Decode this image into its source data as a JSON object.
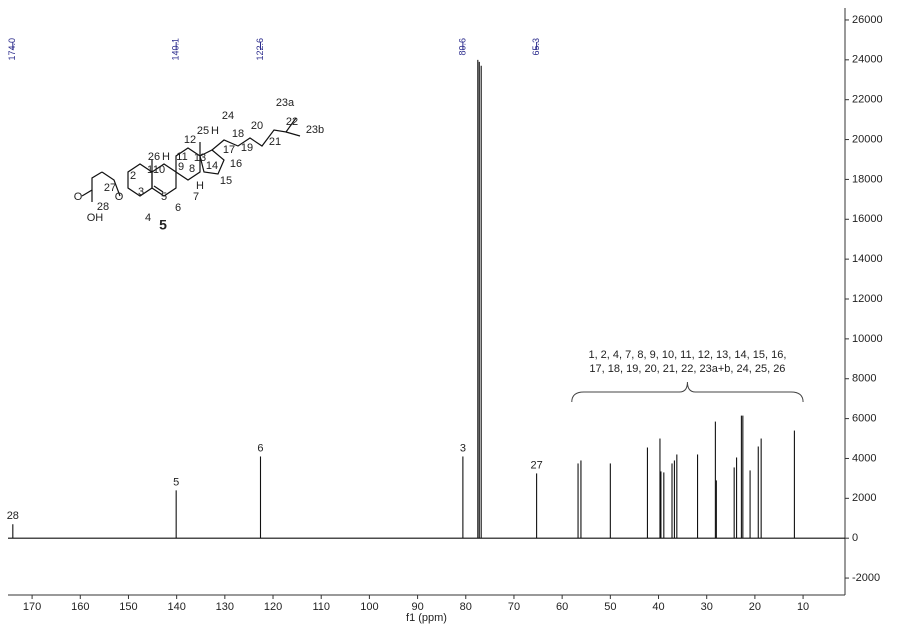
{
  "chart_data": {
    "type": "spectrum",
    "x_label": "f1 (ppm)",
    "xlim": [
      175,
      1.3
    ],
    "ylim": [
      -2850,
      26600
    ],
    "xticks": [
      170,
      160,
      150,
      140,
      130,
      120,
      110,
      100,
      90,
      80,
      70,
      60,
      50,
      40,
      30,
      20,
      10
    ],
    "yticks": [
      -2000,
      0,
      2000,
      4000,
      6000,
      8000,
      10000,
      12000,
      14000,
      16000,
      18000,
      20000,
      22000,
      24000,
      26000
    ],
    "color": "#111111",
    "x": [
      174.0,
      140.1,
      122.6,
      80.6,
      77.5,
      77.2,
      76.8,
      65.3,
      56.7,
      56.1,
      50.0,
      42.3,
      39.7,
      39.5,
      38.9,
      37.2,
      36.7,
      36.2,
      31.9,
      28.2,
      28.0,
      24.3,
      23.8,
      22.8,
      22.5,
      21.0,
      19.3,
      18.7,
      11.8
    ],
    "values": [
      700,
      2400,
      4100,
      4100,
      24000,
      23900,
      23700,
      3250,
      3750,
      3900,
      3750,
      4550,
      5000,
      3350,
      3300,
      3750,
      3900,
      4200,
      4200,
      5850,
      2900,
      3550,
      4050,
      6150,
      6150,
      3400,
      4600,
      5000,
      5400
    ],
    "assignments": [
      "28",
      "5",
      "6",
      "3",
      null,
      null,
      null,
      "27",
      null,
      null,
      null,
      null,
      null,
      null,
      null,
      null,
      null,
      null,
      null,
      null,
      null,
      null,
      null,
      null,
      null,
      null,
      null,
      null,
      null
    ],
    "peak_picks": [
      {
        "value": 174,
        "label": "174.0"
      },
      140.1,
      122.6,
      80.6,
      65.3
    ],
    "bracket_label": [
      "1, 2, 4, 7, 8, 9, 10, 11, 12, 13, 14, 15, 16,",
      "17, 18, 19, 20, 21, 22, 23a+b, 24, 25, 26"
    ]
  },
  "structure": {
    "compound": "5",
    "atom_labels": [
      "23a",
      "22",
      "23b",
      "24",
      "25",
      "H",
      "18",
      "20",
      "21",
      "12",
      "19",
      "11",
      "13",
      "17",
      "16",
      "26",
      "H",
      "9",
      "14",
      "1",
      "10",
      "8",
      "2",
      "H",
      "15",
      "27",
      "3",
      "O",
      "7",
      "O",
      "28",
      "4",
      "5",
      "6",
      "OH"
    ]
  }
}
